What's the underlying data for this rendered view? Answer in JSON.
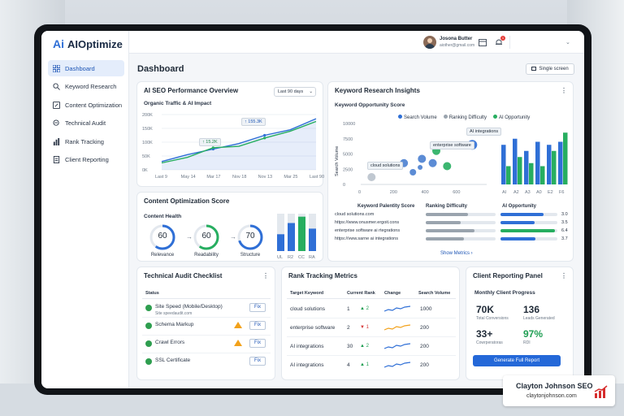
{
  "app": {
    "logo_mark": "Ai",
    "name": "AIOptimize"
  },
  "sidebar": {
    "items": [
      {
        "label": "Dashboard",
        "icon": "grid-icon"
      },
      {
        "label": "Keyword Research",
        "icon": "search-icon"
      },
      {
        "label": "Content Optimization",
        "icon": "edit-icon"
      },
      {
        "label": "Technical Audit",
        "icon": "magnify-icon"
      },
      {
        "label": "Rank Tracking",
        "icon": "bar-chart-icon"
      },
      {
        "label": "Client Reporting",
        "icon": "document-icon"
      }
    ]
  },
  "header": {
    "user_name": "Josona Butter",
    "user_email": "aiother@gmail.com",
    "notification_count": "1"
  },
  "page": {
    "title": "Dashboard",
    "view_button": "Single screen"
  },
  "performance": {
    "title": "AI SEO Performance Overview",
    "range": "Last 90 days",
    "subtitle": "Organic Traffic & AI Impact",
    "callout_low": "↑ 15.2K",
    "callout_high": "↑ 155.3K"
  },
  "keyword_insights": {
    "title": "Keyword Research Insights",
    "subtitle": "Keyword Opportunity Score",
    "legend": [
      "Search Volume",
      "Ranking Difficulty",
      "AI Opportunity"
    ],
    "tags": [
      "AI integrations",
      "enterprise software",
      "cloud solutions"
    ],
    "table_headers": [
      "Keyword Palentity Score",
      "Ranking Difficulty",
      "AI Opportunity"
    ],
    "rows": [
      {
        "keyword": "cloud solutions.com",
        "score": "3.0"
      },
      {
        "keyword": "https://www.onusmer.ergoit.cons",
        "score": "3.5"
      },
      {
        "keyword": "enterprise software ai rtegrations",
        "score": "6.4"
      },
      {
        "keyword": "https://vww.sarne ai integrations",
        "score": "3.7"
      }
    ],
    "show_more": "Show Metrics  ›"
  },
  "content_score": {
    "title": "Content Optimization Score",
    "subtitle": "Content Health",
    "rings": [
      {
        "value": "60",
        "label": "Relevance",
        "color": "#2f6fd6"
      },
      {
        "value": "60",
        "label": "Readability",
        "color": "#27ae60"
      },
      {
        "value": "70",
        "label": "Structure",
        "color": "#2f6fd6"
      }
    ]
  },
  "audit": {
    "title": "Technical Audit Checklist",
    "status_header": "Status",
    "items": [
      {
        "label": "Site Speed (Mobile/Desktop)",
        "sub": "Site speedaudit.com",
        "fix": "Fix"
      },
      {
        "label": "Schema Markup",
        "sub": "",
        "fix": "Fix"
      },
      {
        "label": "Crawl Errors",
        "sub": "",
        "fix": "Fix"
      },
      {
        "label": "SSL Certificate",
        "sub": "",
        "fix": "Fix"
      }
    ]
  },
  "rank": {
    "title": "Rank Tracking Metrics",
    "headers": [
      "Target Keyword",
      "Current Rank",
      "Change",
      "Search Volume"
    ],
    "rows": [
      {
        "keyword": "cloud solutions",
        "rank": "1",
        "change": "▲ 2",
        "volume": "1000",
        "dir": "up"
      },
      {
        "keyword": "enterprise software",
        "rank": "2",
        "change": "▼ 1",
        "volume": "200",
        "dir": "down"
      },
      {
        "keyword": "AI integrations",
        "rank": "30",
        "change": "▲ 2",
        "volume": "200",
        "dir": "up"
      },
      {
        "keyword": "AI integrations",
        "rank": "4",
        "change": "▲ 1",
        "volume": "200",
        "dir": "up"
      }
    ]
  },
  "client": {
    "title": "Client Reporting Panel",
    "subtitle": "Monthly Client Progress",
    "stats": [
      {
        "value": "70K",
        "label": "Total Conversions"
      },
      {
        "value": "136",
        "label": "Leads Generated"
      },
      {
        "value": "33+",
        "label": "Cowrperatoras"
      },
      {
        "value": "97%",
        "label": "RDI"
      }
    ],
    "button": "Generate Full Report"
  },
  "watermark": {
    "name": "Clayton Johnson SEO",
    "url": "claytonjohnson.com"
  },
  "chart_data": [
    {
      "type": "line",
      "title": "Organic Traffic & AI Impact",
      "x": [
        "Last 9",
        "May 14",
        "Mar 17",
        "Nov 18",
        "Nov 13",
        "Mar 25",
        "Last 90"
      ],
      "series": [
        {
          "values": [
            30,
            55,
            75,
            95,
            125,
            145,
            185
          ],
          "color": "#2f6fd6"
        },
        {
          "values": [
            25,
            45,
            80,
            85,
            115,
            140,
            175
          ],
          "color": "#27ae60"
        }
      ],
      "yticks": [
        "200K",
        "150K",
        "100K",
        "50K",
        "0K"
      ],
      "ylim": [
        0,
        200
      ]
    },
    {
      "type": "scatter",
      "title": "Keyword Opportunity Score",
      "ylabel": "Search Volume",
      "yticks": [
        "10000",
        "7500",
        "5000",
        "2500",
        "0"
      ],
      "xticks": [
        "0",
        "200",
        "400",
        "600"
      ],
      "xlim": [
        0,
        700
      ],
      "ylim": [
        0,
        10000
      ],
      "points": [
        {
          "x": 60,
          "y": 1200,
          "r": 5,
          "color": "#b9c2cc"
        },
        {
          "x": 240,
          "y": 3500,
          "r": 5,
          "color": "#4a7fd0"
        },
        {
          "x": 290,
          "y": 2000,
          "r": 4,
          "color": "#4a7fd0"
        },
        {
          "x": 330,
          "y": 2800,
          "r": 3,
          "color": "#4a7fd0"
        },
        {
          "x": 340,
          "y": 4200,
          "r": 5,
          "color": "#4a7fd0"
        },
        {
          "x": 400,
          "y": 3500,
          "r": 5,
          "color": "#4a7fd0"
        },
        {
          "x": 420,
          "y": 5500,
          "r": 5,
          "color": "#27ae60"
        },
        {
          "x": 480,
          "y": 3000,
          "r": 5,
          "color": "#27ae60"
        },
        {
          "x": 620,
          "y": 6500,
          "r": 6,
          "color": "#2f6fd6"
        }
      ]
    },
    {
      "type": "bar",
      "categories": [
        "AI",
        "A2",
        "A3",
        "A0",
        "E2",
        "F6"
      ],
      "series": [
        {
          "values": [
            6500,
            7500,
            5500,
            7000,
            6500,
            7000
          ],
          "color": "#2f6fd6"
        },
        {
          "values": [
            3000,
            4500,
            3500,
            3000,
            5500,
            8500
          ],
          "color": "#27ae60"
        }
      ],
      "ylim": [
        0,
        10000
      ]
    },
    {
      "type": "bar",
      "categories": [
        "UL",
        "R2",
        "CC",
        "RA"
      ],
      "series": [
        {
          "values": [
            45,
            75,
            80,
            60
          ],
          "color": "#2f6fd6"
        },
        {
          "values": [
            0,
            0,
            92,
            0
          ],
          "color": "#27ae60"
        }
      ],
      "ylim": [
        0,
        100
      ]
    }
  ]
}
